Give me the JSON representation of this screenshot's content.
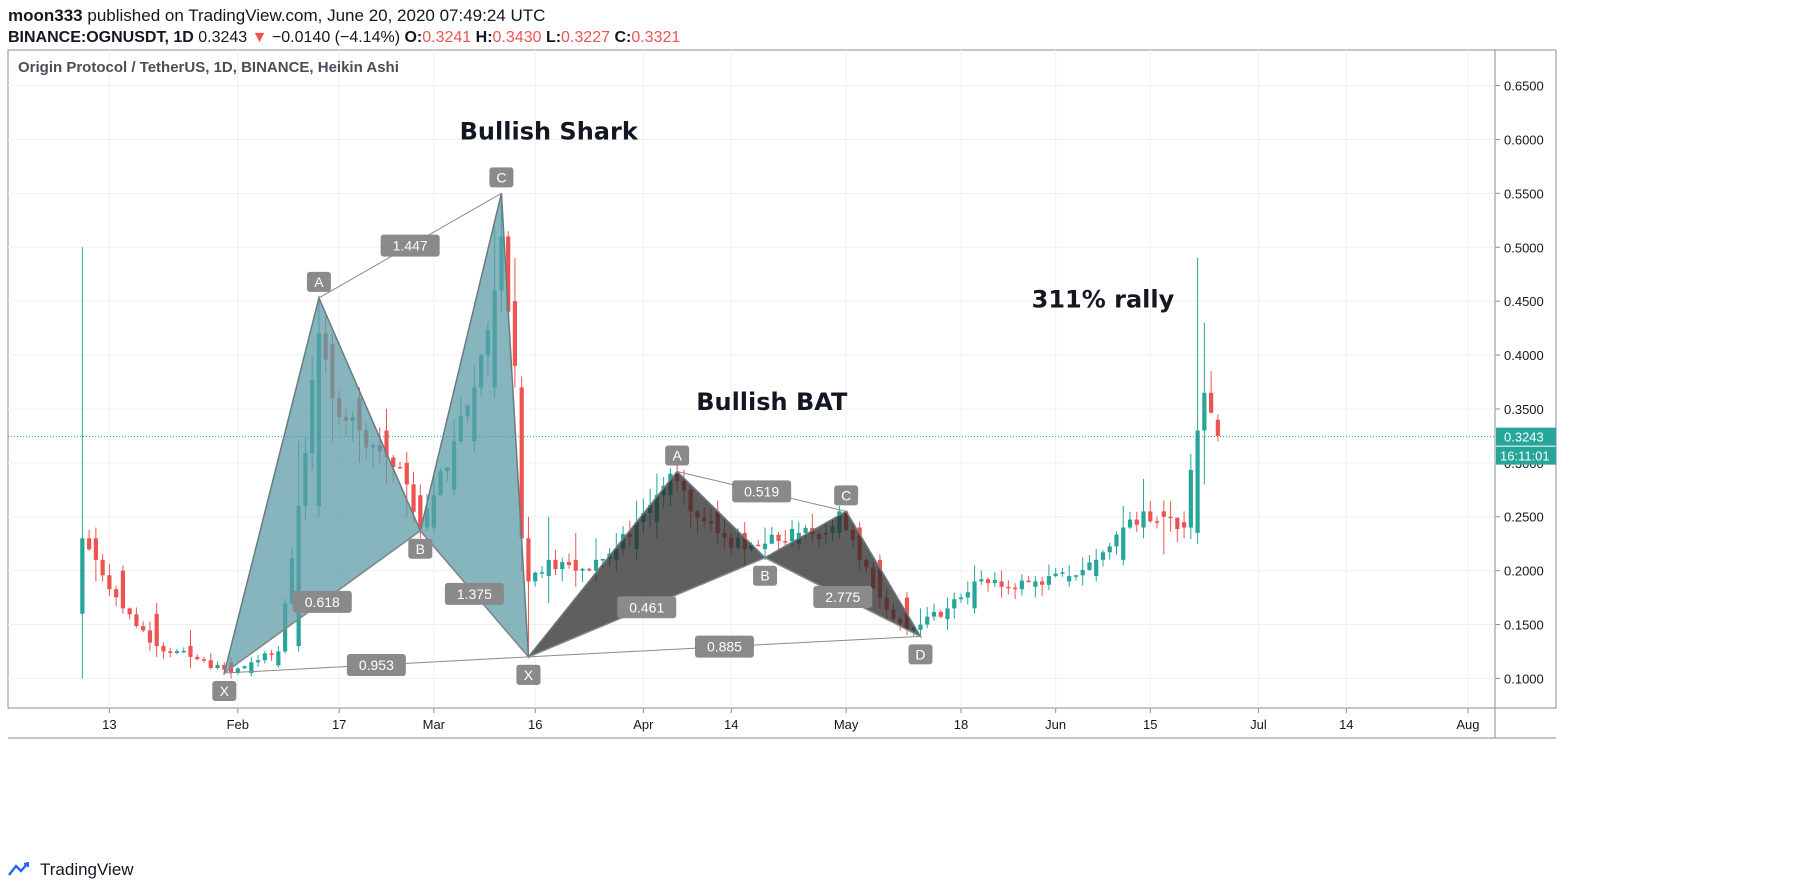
{
  "header": {
    "publisher": "moon333",
    "published_text": "published on TradingView.com, June 20, 2020 07:49:24 UTC",
    "symbol": "BINANCE:OGNUSDT, 1D",
    "last": "0.3243",
    "change_arrow": "▼",
    "change": "−0.0140 (−4.14%)",
    "o_label": "O:",
    "o": "0.3241",
    "h_label": "H:",
    "h": "0.3430",
    "l_label": "L:",
    "l": "0.3227",
    "c_label": "C:",
    "c": "0.3321"
  },
  "chart_data": {
    "type": "candlestick",
    "title": "Origin Protocol / TetherUS, 1D, BINANCE, Heikin Ashi",
    "chart_style": "Heikin Ashi",
    "ylim": [
      0.08,
      0.67
    ],
    "y_ticks": [
      "0.6500",
      "0.6000",
      "0.5500",
      "0.5000",
      "0.4500",
      "0.4000",
      "0.3500",
      "0.3000",
      "0.2500",
      "0.2000",
      "0.1500",
      "0.1000"
    ],
    "x_ticks": [
      {
        "label": "13",
        "day": 13
      },
      {
        "label": "Feb",
        "day": 32
      },
      {
        "label": "17",
        "day": 47
      },
      {
        "label": "Mar",
        "day": 61
      },
      {
        "label": "16",
        "day": 76
      },
      {
        "label": "Apr",
        "day": 92
      },
      {
        "label": "14",
        "day": 105
      },
      {
        "label": "May",
        "day": 122
      },
      {
        "label": "18",
        "day": 139
      },
      {
        "label": "Jun",
        "day": 153
      },
      {
        "label": "15",
        "day": 167
      },
      {
        "label": "Jul",
        "day": 183
      },
      {
        "label": "14",
        "day": 196
      },
      {
        "label": "Aug",
        "day": 214
      }
    ],
    "x_range_days": [
      -2,
      218
    ],
    "current_price": {
      "value": 0.3243,
      "label": "0.3243",
      "countdown": "16:11:01"
    },
    "colors": {
      "up": "#26a69a",
      "down": "#ef5350",
      "pattern_fill": "#5e9ca7",
      "bat_fill": "#2a2a2a",
      "tag": "#8a8a8a"
    },
    "candle_key_points": [
      [
        9,
        0.16,
        0.23,
        0.1,
        0.5
      ],
      [
        11,
        0.23,
        0.21,
        0.19,
        0.24
      ],
      [
        15,
        0.2,
        0.165,
        0.16,
        0.205
      ],
      [
        20,
        0.16,
        0.13,
        0.12,
        0.17
      ],
      [
        25,
        0.13,
        0.12,
        0.11,
        0.145
      ],
      [
        31,
        0.115,
        0.105,
        0.1,
        0.12
      ],
      [
        34,
        0.105,
        0.115,
        0.102,
        0.12
      ],
      [
        38,
        0.112,
        0.125,
        0.11,
        0.13
      ],
      [
        41,
        0.13,
        0.26,
        0.125,
        0.32
      ],
      [
        44,
        0.26,
        0.42,
        0.25,
        0.455
      ],
      [
        46,
        0.41,
        0.36,
        0.32,
        0.42
      ],
      [
        50,
        0.36,
        0.33,
        0.3,
        0.37
      ],
      [
        54,
        0.33,
        0.305,
        0.28,
        0.35
      ],
      [
        57,
        0.3,
        0.28,
        0.25,
        0.31
      ],
      [
        59,
        0.27,
        0.24,
        0.23,
        0.28
      ],
      [
        61,
        0.24,
        0.27,
        0.235,
        0.29
      ],
      [
        64,
        0.275,
        0.32,
        0.27,
        0.34
      ],
      [
        67,
        0.32,
        0.37,
        0.31,
        0.39
      ],
      [
        70,
        0.37,
        0.46,
        0.36,
        0.52
      ],
      [
        71,
        0.46,
        0.51,
        0.44,
        0.55
      ],
      [
        73,
        0.45,
        0.39,
        0.37,
        0.49
      ],
      [
        74,
        0.37,
        0.23,
        0.2,
        0.38
      ],
      [
        75,
        0.23,
        0.19,
        0.125,
        0.25
      ],
      [
        78,
        0.195,
        0.21,
        0.17,
        0.25
      ],
      [
        82,
        0.21,
        0.2,
        0.185,
        0.235
      ],
      [
        85,
        0.2,
        0.21,
        0.19,
        0.23
      ],
      [
        88,
        0.21,
        0.22,
        0.2,
        0.235
      ],
      [
        91,
        0.22,
        0.245,
        0.21,
        0.265
      ],
      [
        94,
        0.245,
        0.27,
        0.23,
        0.29
      ],
      [
        96,
        0.27,
        0.29,
        0.26,
        0.295
      ],
      [
        99,
        0.275,
        0.255,
        0.24,
        0.28
      ],
      [
        103,
        0.255,
        0.235,
        0.225,
        0.265
      ],
      [
        107,
        0.235,
        0.22,
        0.205,
        0.245
      ],
      [
        110,
        0.22,
        0.225,
        0.21,
        0.24
      ],
      [
        115,
        0.225,
        0.235,
        0.22,
        0.245
      ],
      [
        119,
        0.235,
        0.235,
        0.225,
        0.245
      ],
      [
        121,
        0.235,
        0.255,
        0.23,
        0.26
      ],
      [
        124,
        0.24,
        0.21,
        0.2,
        0.245
      ],
      [
        127,
        0.21,
        0.175,
        0.165,
        0.215
      ],
      [
        131,
        0.175,
        0.145,
        0.14,
        0.18
      ],
      [
        133,
        0.145,
        0.15,
        0.14,
        0.165
      ],
      [
        137,
        0.155,
        0.165,
        0.145,
        0.175
      ],
      [
        141,
        0.165,
        0.19,
        0.16,
        0.205
      ],
      [
        145,
        0.19,
        0.185,
        0.175,
        0.2
      ],
      [
        150,
        0.185,
        0.19,
        0.175,
        0.195
      ],
      [
        155,
        0.19,
        0.195,
        0.185,
        0.205
      ],
      [
        159,
        0.195,
        0.21,
        0.19,
        0.22
      ],
      [
        163,
        0.21,
        0.24,
        0.205,
        0.26
      ],
      [
        166,
        0.24,
        0.255,
        0.23,
        0.285
      ],
      [
        169,
        0.255,
        0.25,
        0.215,
        0.265
      ],
      [
        172,
        0.245,
        0.24,
        0.23,
        0.255
      ],
      [
        174,
        0.235,
        0.33,
        0.225,
        0.49
      ],
      [
        175,
        0.33,
        0.365,
        0.28,
        0.43
      ],
      [
        177,
        0.34,
        0.325,
        0.32,
        0.345
      ]
    ],
    "annotations": [
      {
        "text": "Bullish Shark",
        "day": 78,
        "y": 0.6
      },
      {
        "text": "Bullish BAT",
        "day": 111,
        "y": 0.349
      },
      {
        "text": "311% rally",
        "day": 160,
        "y": 0.444
      }
    ],
    "shark_pattern": {
      "points": [
        {
          "label": "X",
          "day": 30,
          "y": 0.105
        },
        {
          "label": "A",
          "day": 44,
          "y": 0.453
        },
        {
          "label": "B",
          "day": 59,
          "y": 0.237
        },
        {
          "label": "C",
          "day": 71,
          "y": 0.55
        },
        {
          "label": "X",
          "day": 75,
          "y": 0.12
        }
      ],
      "ratios": [
        {
          "text": "1.447",
          "from": 1,
          "to": 3
        },
        {
          "text": "0.618",
          "from": 0,
          "to": 2
        },
        {
          "text": "1.375",
          "from": 2,
          "to": 4
        },
        {
          "text": "0.953",
          "from": 0,
          "to": 4
        }
      ]
    },
    "bat_pattern": {
      "points": [
        {
          "label": "X",
          "day": 75,
          "y": 0.12
        },
        {
          "label": "A",
          "day": 97,
          "y": 0.292
        },
        {
          "label": "B",
          "day": 110,
          "y": 0.212
        },
        {
          "label": "C",
          "day": 122,
          "y": 0.255
        },
        {
          "label": "D",
          "day": 133,
          "y": 0.139
        }
      ],
      "ratios": [
        {
          "text": "0.519",
          "from": 1,
          "to": 3
        },
        {
          "text": "0.461",
          "from": 0,
          "to": 2
        },
        {
          "text": "2.775",
          "from": 2,
          "to": 4
        },
        {
          "text": "0.885",
          "from": 0,
          "to": 4
        }
      ]
    }
  },
  "footer": {
    "logo_icon": "tradingview-logo-icon",
    "brand": "TradingView"
  }
}
